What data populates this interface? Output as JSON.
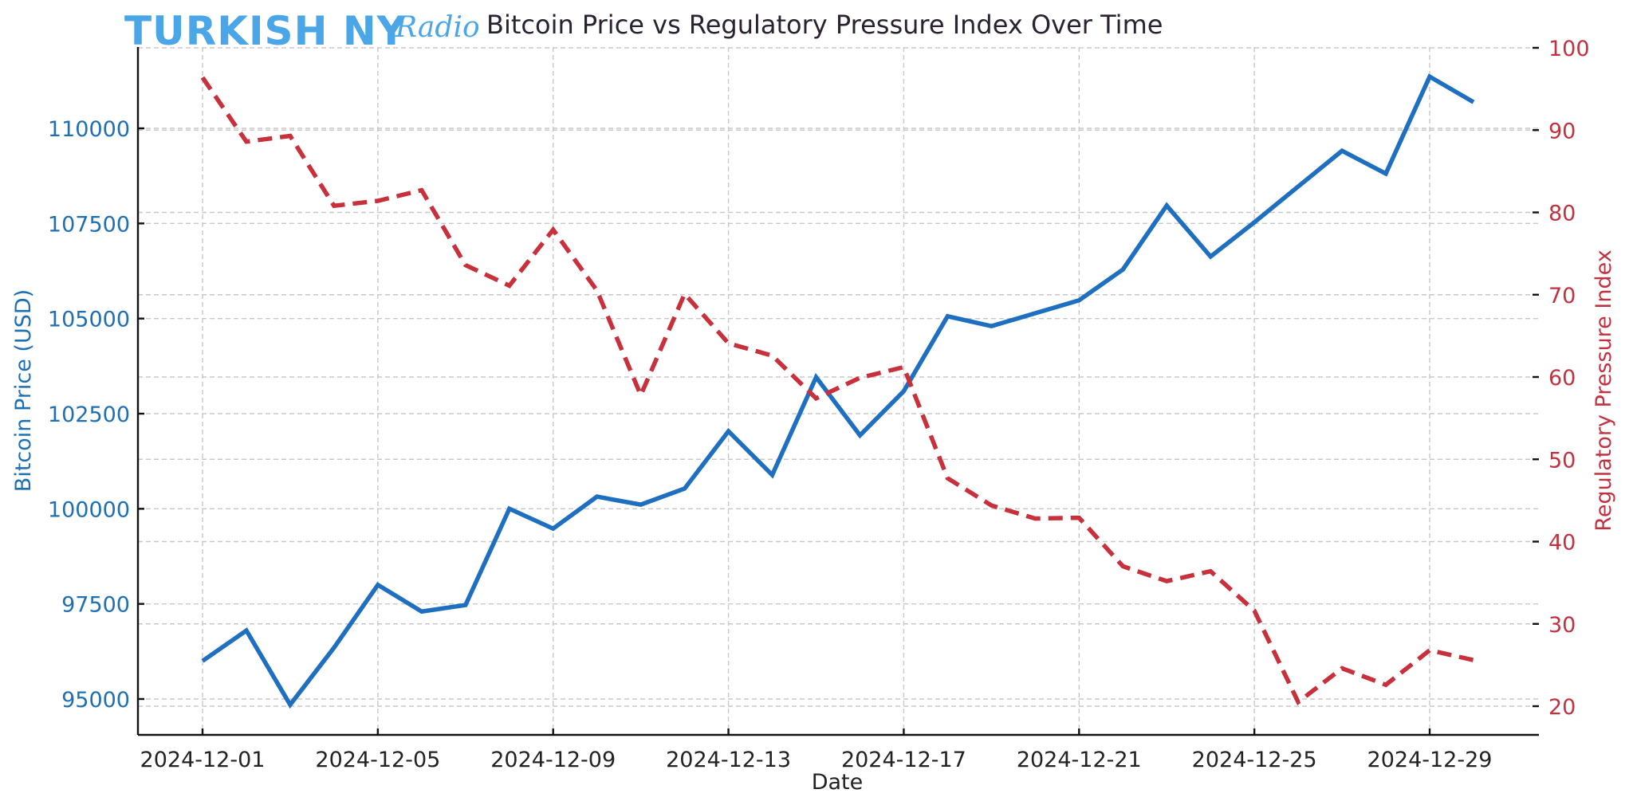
{
  "branding": {
    "logo_main": "TURKISH NY",
    "logo_script": "Radio"
  },
  "chart_data": {
    "type": "line",
    "title": "Bitcoin Price vs Regulatory Pressure Index Over Time",
    "xlabel": "Date",
    "ylabel_left": "Bitcoin Price (USD)",
    "ylabel_right": "Regulatory Pressure Index",
    "x": [
      "2024-12-01",
      "2024-12-02",
      "2024-12-03",
      "2024-12-04",
      "2024-12-05",
      "2024-12-06",
      "2024-12-07",
      "2024-12-08",
      "2024-12-09",
      "2024-12-10",
      "2024-12-11",
      "2024-12-12",
      "2024-12-13",
      "2024-12-14",
      "2024-12-15",
      "2024-12-16",
      "2024-12-17",
      "2024-12-18",
      "2024-12-19",
      "2024-12-20",
      "2024-12-21",
      "2024-12-22",
      "2024-12-23",
      "2024-12-24",
      "2024-12-25",
      "2024-12-26",
      "2024-12-27",
      "2024-12-28",
      "2024-12-29",
      "2024-12-30"
    ],
    "x_ticks": [
      "2024-12-01",
      "2024-12-05",
      "2024-12-09",
      "2024-12-13",
      "2024-12-17",
      "2024-12-21",
      "2024-12-25",
      "2024-12-29"
    ],
    "y_left_ticks": [
      95000,
      97500,
      100000,
      102500,
      105000,
      107500,
      110000
    ],
    "y_right_ticks": [
      20,
      30,
      40,
      50,
      60,
      70,
      80,
      90,
      100
    ],
    "ylim_left": [
      94000,
      112500
    ],
    "ylim_right": [
      16,
      100
    ],
    "grid": true,
    "series": [
      {
        "name": "Bitcoin Price (USD)",
        "axis": "left",
        "color": "#1f6fc0",
        "style": "solid",
        "values": [
          96000,
          96800,
          94850,
          96350,
          98000,
          97300,
          97470,
          100000,
          99480,
          100320,
          100110,
          100530,
          102040,
          100890,
          103460,
          101930,
          103090,
          105060,
          104800,
          105140,
          105480,
          106290,
          107970,
          106630,
          107530,
          108470,
          109410,
          108810,
          111360,
          110690
        ]
      },
      {
        "name": "Regulatory Pressure Index",
        "axis": "right",
        "color": "#c8303c",
        "style": "dashed",
        "values": [
          96.4,
          88.6,
          89.3,
          80.8,
          81.4,
          82.7,
          73.6,
          71.1,
          77.9,
          70.5,
          57.8,
          70.1,
          64.1,
          62.6,
          57.4,
          59.9,
          61.2,
          47.7,
          44.4,
          42.8,
          42.9,
          37.0,
          35.2,
          36.4,
          31.6,
          20.5,
          24.6,
          22.6,
          26.8,
          25.6
        ]
      }
    ]
  }
}
